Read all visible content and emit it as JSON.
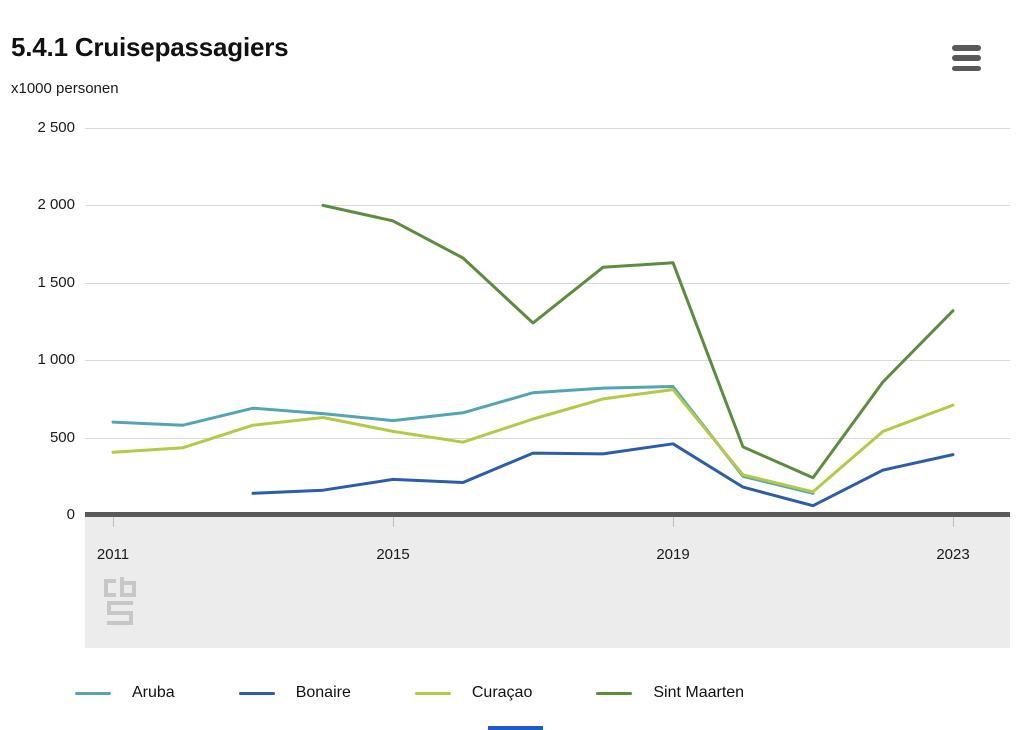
{
  "header": {
    "title": "5.4.1 Cruisepassagiers",
    "unit_label": "x1000 personen",
    "menu_icon": "hamburger-menu-icon"
  },
  "chart_data": {
    "type": "line",
    "title": "5.4.1 Cruisepassagiers",
    "ylabel": "x1000 personen",
    "x": [
      2011,
      2012,
      2013,
      2014,
      2015,
      2016,
      2017,
      2018,
      2019,
      2020,
      2021,
      2022,
      2023
    ],
    "x_tick_labels": [
      "2011",
      "2015",
      "2019",
      "2023"
    ],
    "x_tick_years": [
      2011,
      2015,
      2019,
      2023
    ],
    "ylim": [
      0,
      2500
    ],
    "y_ticks": [
      0,
      500,
      1000,
      1500,
      2000,
      2500
    ],
    "y_tick_labels": [
      "0",
      "500",
      "1 000",
      "1 500",
      "2 000",
      "2 500"
    ],
    "grid": true,
    "legend_position": "bottom",
    "series": [
      {
        "name": "Aruba",
        "color": "#53a5b6",
        "values": [
          600,
          580,
          690,
          655,
          610,
          660,
          790,
          820,
          830,
          250,
          140,
          null,
          null
        ]
      },
      {
        "name": "Bonaire",
        "color": "#2b5da9",
        "values": [
          null,
          null,
          140,
          160,
          230,
          210,
          400,
          395,
          460,
          180,
          60,
          290,
          390
        ]
      },
      {
        "name": "Curaçao",
        "color": "#b2ca45",
        "values": [
          405,
          435,
          580,
          630,
          540,
          470,
          620,
          750,
          810,
          260,
          150,
          540,
          710
        ]
      },
      {
        "name": "Sint Maarten",
        "color": "#5b8d3c",
        "values": [
          null,
          null,
          null,
          2000,
          1900,
          1660,
          1240,
          1600,
          1630,
          440,
          240,
          860,
          1320
        ]
      }
    ]
  },
  "footer": {
    "logo": "cbs-logo"
  },
  "colors": {
    "grid": "#d9d9d9",
    "axis": "#595959",
    "band_background": "#ececec",
    "menu_icon": "#595959",
    "logo_gray": "#c3c3c3",
    "bottom_bar_blue": "#1e5ac8"
  }
}
